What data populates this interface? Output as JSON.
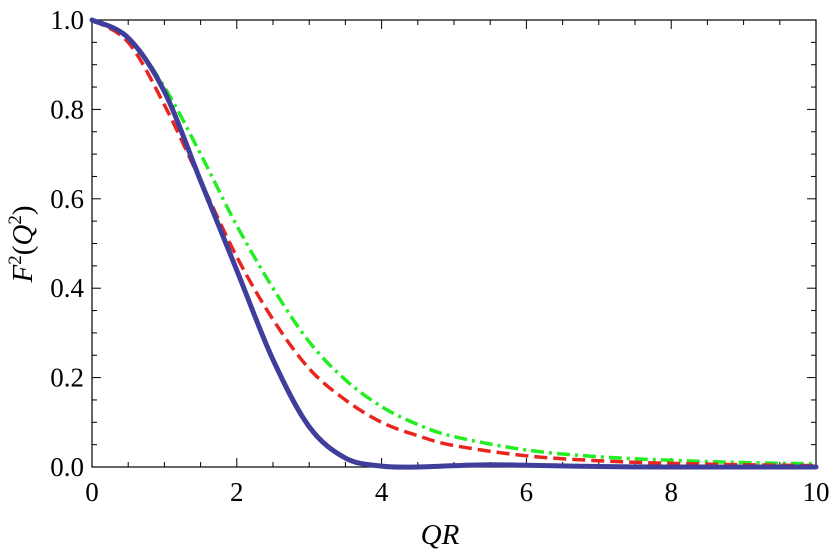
{
  "chart_data": {
    "type": "line",
    "title": "",
    "xlabel": "QR",
    "ylabel_parts": {
      "F": "F",
      "exp1": "2",
      "open": "(",
      "Q": "Q",
      "exp2": "2",
      "close": ")"
    },
    "xlim": [
      0,
      10
    ],
    "ylim": [
      0,
      1
    ],
    "x_ticks": [
      0,
      2,
      4,
      6,
      8,
      10
    ],
    "y_ticks": [
      0.0,
      0.2,
      0.4,
      0.6,
      0.8,
      1.0
    ],
    "x_tick_labels": [
      "0",
      "2",
      "4",
      "6",
      "8",
      "10"
    ],
    "y_tick_labels": [
      "0.0",
      "0.2",
      "0.4",
      "0.6",
      "0.8",
      "1.0"
    ],
    "grid": false,
    "legend": "none",
    "series": [
      {
        "color": "#3f3f9b",
        "style": "solid",
        "x": [
          0,
          0.5,
          1.0,
          1.5,
          2.0,
          2.5,
          3.0,
          3.5,
          4.0,
          4.5,
          5.0,
          5.5,
          6.0,
          7.0,
          8.0,
          9.0,
          10.0
        ],
        "y": [
          1.0,
          0.96,
          0.84,
          0.64,
          0.44,
          0.24,
          0.09,
          0.02,
          0.002,
          0.0,
          0.003,
          0.005,
          0.004,
          0.001,
          0.0,
          0.0,
          0.0
        ]
      },
      {
        "color": "#e8251e",
        "style": "dashed",
        "x": [
          0,
          0.5,
          1.0,
          1.5,
          2.0,
          2.5,
          3.0,
          3.5,
          4.0,
          4.5,
          5.0,
          6.0,
          7.0,
          8.0,
          9.0,
          10.0
        ],
        "y": [
          1.0,
          0.95,
          0.81,
          0.64,
          0.47,
          0.33,
          0.22,
          0.15,
          0.1,
          0.07,
          0.048,
          0.025,
          0.014,
          0.008,
          0.005,
          0.003
        ]
      },
      {
        "color": "#22ee22",
        "style": "dashdot",
        "x": [
          0,
          0.5,
          1.0,
          1.5,
          2.0,
          2.5,
          3.0,
          3.5,
          4.0,
          4.5,
          5.0,
          6.0,
          7.0,
          8.0,
          9.0,
          10.0
        ],
        "y": [
          1.0,
          0.96,
          0.85,
          0.7,
          0.54,
          0.4,
          0.28,
          0.195,
          0.135,
          0.095,
          0.068,
          0.038,
          0.023,
          0.015,
          0.01,
          0.007
        ]
      }
    ]
  }
}
